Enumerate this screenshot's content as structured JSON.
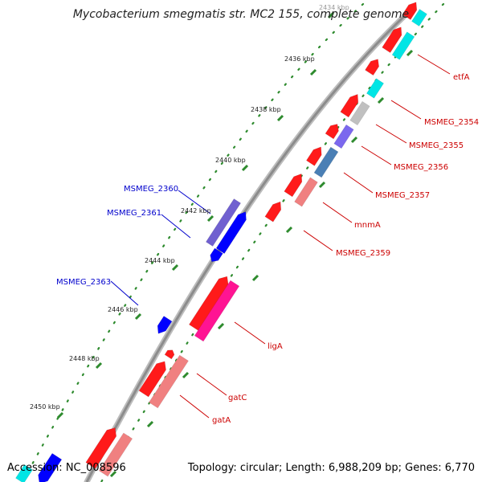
{
  "title": "Mycobacterium smegmatis str. MC2 155, complete genome",
  "accession": "Accession: NC_008596",
  "stats": "Topology: circular; Length: 6,988,209 bp; Genes: 6,770",
  "colors": {
    "backbone": "#8c8c8c",
    "tick": "#2e8b2e",
    "forward_gene": "#ff1a1a",
    "reverse_gene": "#0000ff",
    "label_forward": "#cc0000",
    "label_reverse": "#0000cc"
  },
  "scale": {
    "unit": "kbp",
    "ticks": [
      "2434 kbp",
      "2436 kbp",
      "2438 kbp",
      "2440 kbp",
      "2442 kbp",
      "2444 kbp",
      "2446 kbp",
      "2448 kbp",
      "2450 kbp"
    ]
  },
  "gene_labels_forward": [
    "etfA",
    "MSMEG_2354",
    "MSMEG_2355",
    "MSMEG_2356",
    "MSMEG_2357",
    "mnmA",
    "MSMEG_2359",
    "ligA",
    "gatC",
    "gatA"
  ],
  "gene_labels_reverse": [
    "MSMEG_2360",
    "MSMEG_2361",
    "MSMEG_2363"
  ]
}
